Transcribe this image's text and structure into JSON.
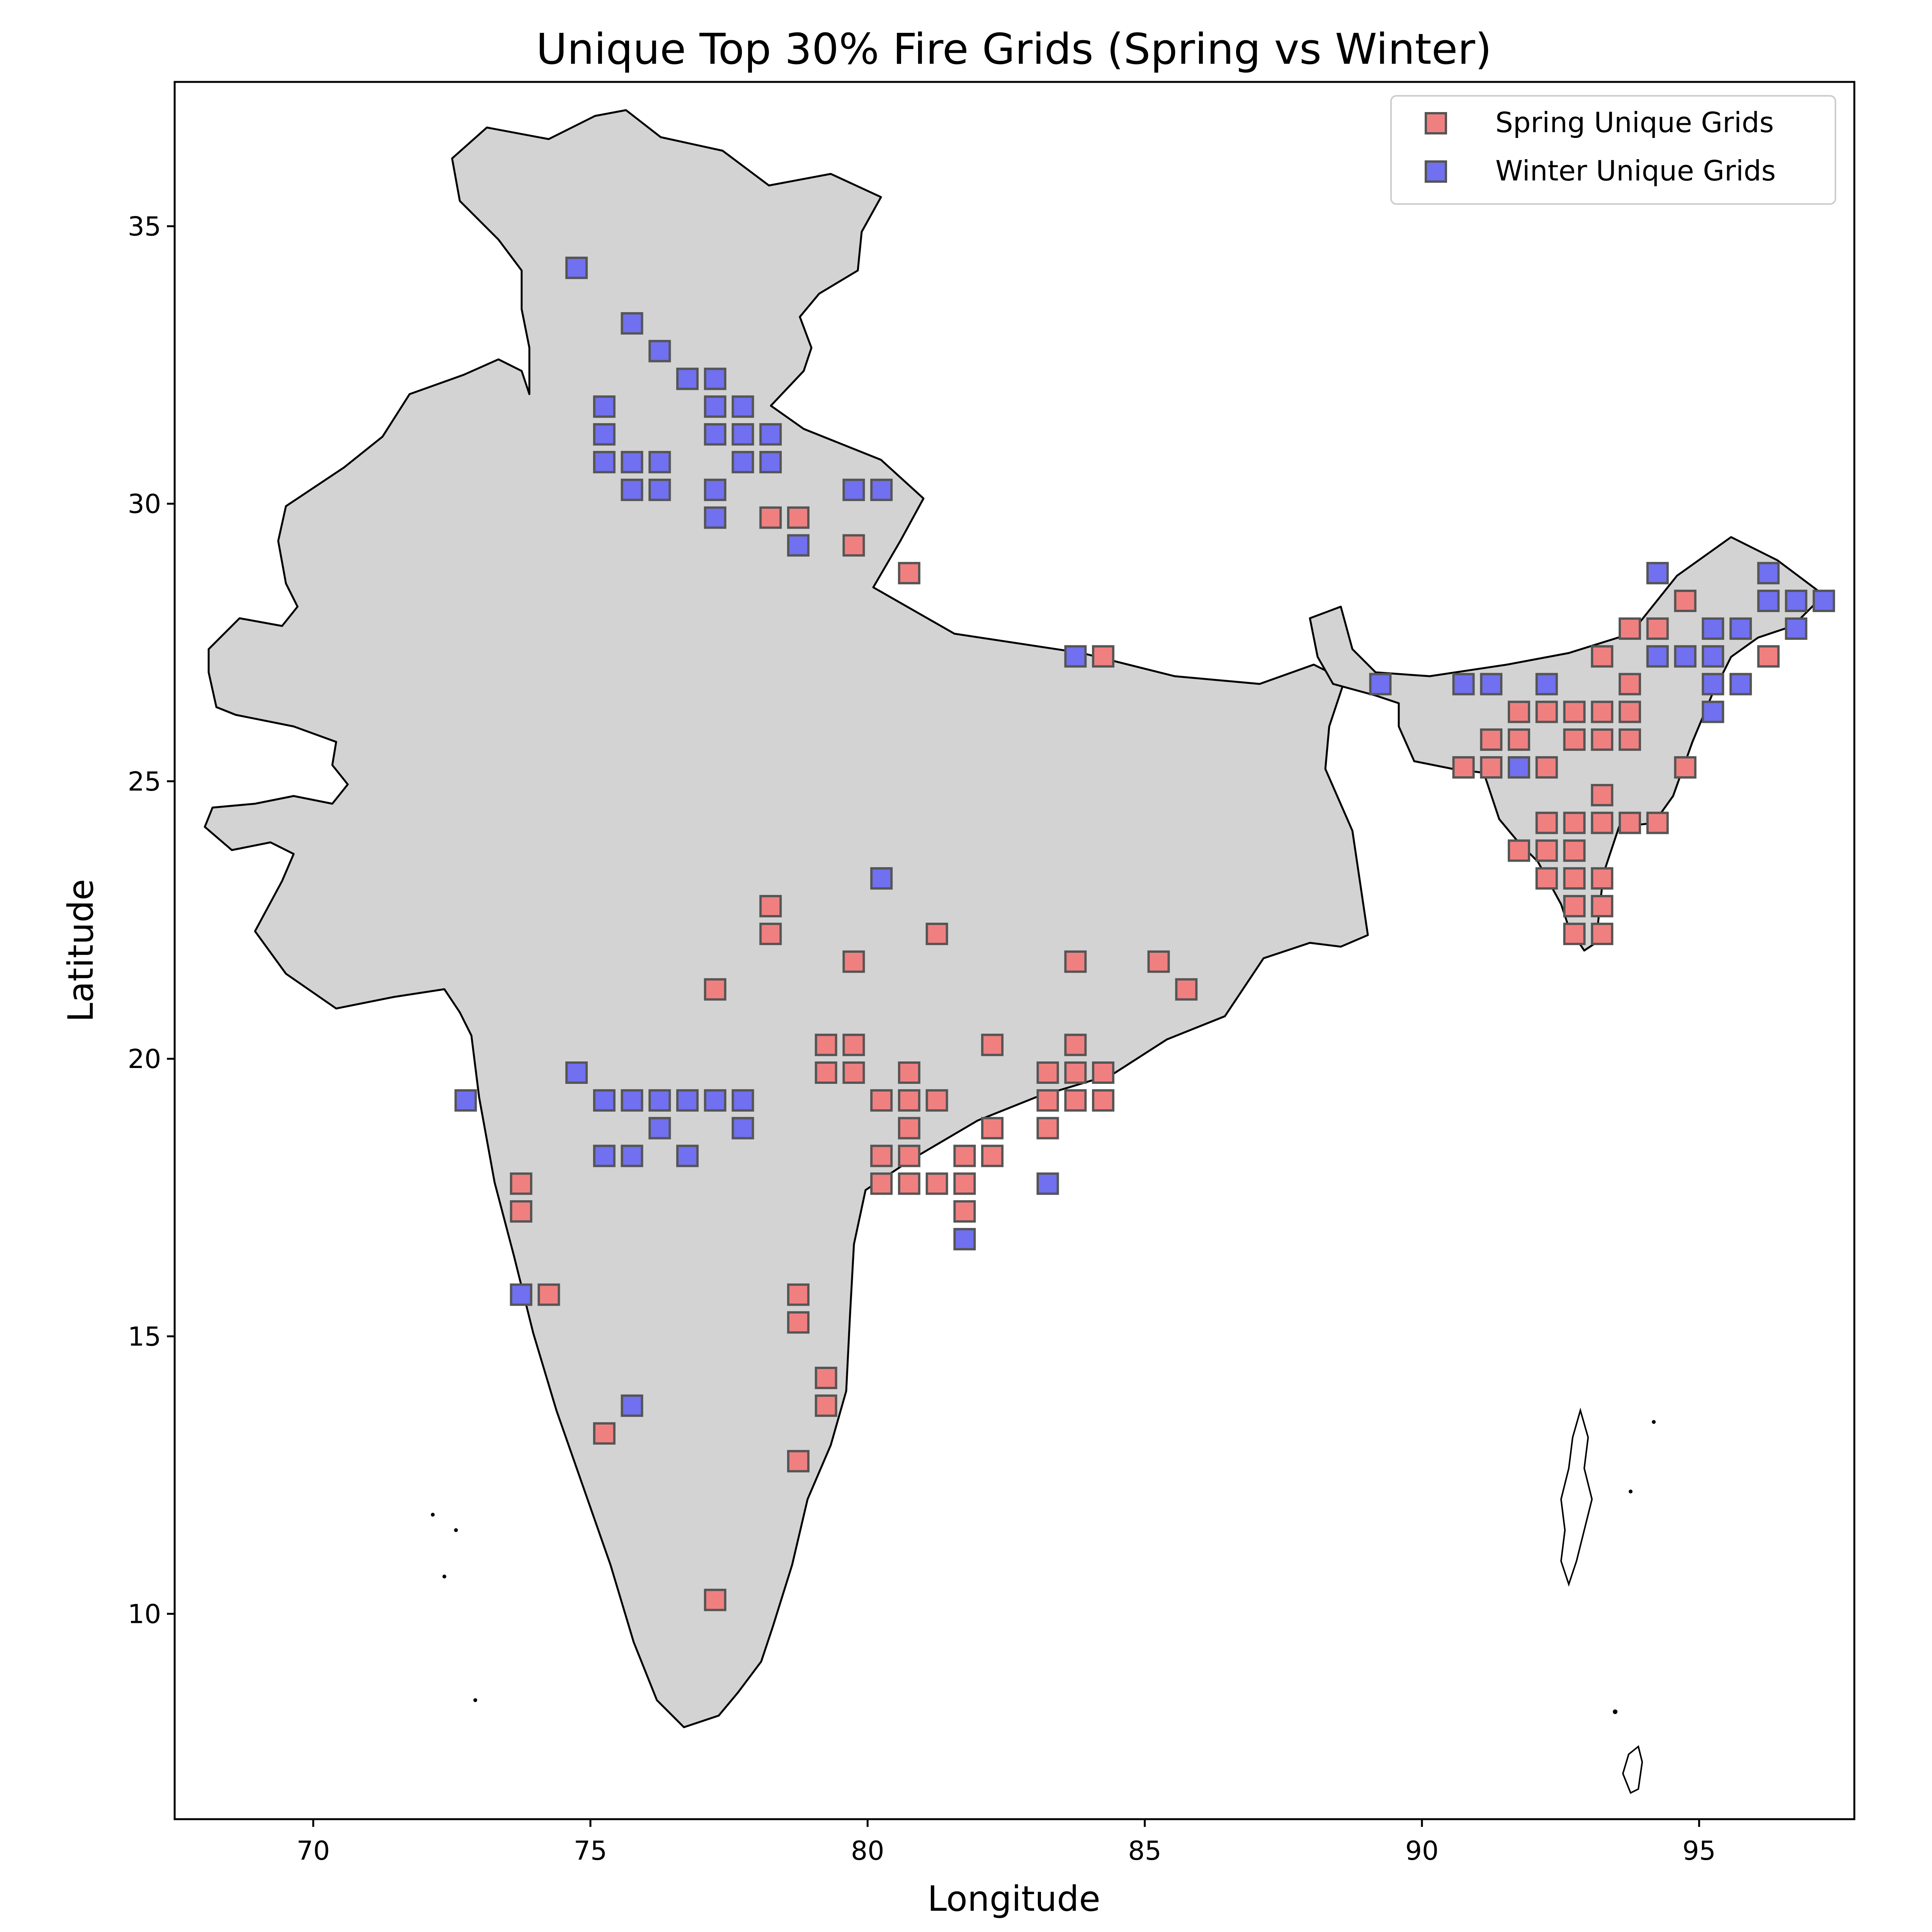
{
  "chart_data": {
    "type": "scatter",
    "title": "Unique Top 30% Fire Grids (Spring vs Winter)",
    "xlabel": "Longitude",
    "ylabel": "Latitude",
    "xlim": [
      67.5,
      97.8
    ],
    "ylim": [
      6.3,
      37.6
    ],
    "xticks": [
      70,
      75,
      80,
      85,
      90,
      95
    ],
    "yticks": [
      10,
      15,
      20,
      25,
      30,
      35
    ],
    "grid": false,
    "legend_position": "top-right",
    "marker": "square",
    "series": [
      {
        "name": "Spring Unique Grids",
        "color": "#f08080",
        "points": [
          [
            78.25,
            29.75
          ],
          [
            78.75,
            29.75
          ],
          [
            79.75,
            29.25
          ],
          [
            80.75,
            28.75
          ],
          [
            84.25,
            27.25
          ],
          [
            78.25,
            22.75
          ],
          [
            78.25,
            22.25
          ],
          [
            79.75,
            21.75
          ],
          [
            81.25,
            22.25
          ],
          [
            77.25,
            21.25
          ],
          [
            83.75,
            21.75
          ],
          [
            85.25,
            21.75
          ],
          [
            85.75,
            21.25
          ],
          [
            79.25,
            20.25
          ],
          [
            79.75,
            20.25
          ],
          [
            79.25,
            19.75
          ],
          [
            79.75,
            19.75
          ],
          [
            80.25,
            19.25
          ],
          [
            80.75,
            19.25
          ],
          [
            80.75,
            19.75
          ],
          [
            81.25,
            19.25
          ],
          [
            80.25,
            18.25
          ],
          [
            80.75,
            18.75
          ],
          [
            80.75,
            18.25
          ],
          [
            80.25,
            17.75
          ],
          [
            80.75,
            17.75
          ],
          [
            81.25,
            17.75
          ],
          [
            81.75,
            18.25
          ],
          [
            81.75,
            17.75
          ],
          [
            81.75,
            17.25
          ],
          [
            82.25,
            20.25
          ],
          [
            82.25,
            18.75
          ],
          [
            82.25,
            18.25
          ],
          [
            83.25,
            19.75
          ],
          [
            83.25,
            19.25
          ],
          [
            83.25,
            18.75
          ],
          [
            83.75,
            19.75
          ],
          [
            83.75,
            19.25
          ],
          [
            83.75,
            20.25
          ],
          [
            84.25,
            19.75
          ],
          [
            84.25,
            19.25
          ],
          [
            73.75,
            17.75
          ],
          [
            73.75,
            17.25
          ],
          [
            74.25,
            15.75
          ],
          [
            78.75,
            15.75
          ],
          [
            78.75,
            15.25
          ],
          [
            79.25,
            14.25
          ],
          [
            79.25,
            13.75
          ],
          [
            78.75,
            12.75
          ],
          [
            75.25,
            13.25
          ],
          [
            77.25,
            10.25
          ],
          [
            94.75,
            28.25
          ],
          [
            93.75,
            27.75
          ],
          [
            94.25,
            27.75
          ],
          [
            93.25,
            27.25
          ],
          [
            96.25,
            27.25
          ],
          [
            93.75,
            26.75
          ],
          [
            91.75,
            26.25
          ],
          [
            92.25,
            26.25
          ],
          [
            92.75,
            26.25
          ],
          [
            93.25,
            26.25
          ],
          [
            93.75,
            26.25
          ],
          [
            91.25,
            25.75
          ],
          [
            91.75,
            25.75
          ],
          [
            92.75,
            25.75
          ],
          [
            93.25,
            25.75
          ],
          [
            93.75,
            25.75
          ],
          [
            90.75,
            25.25
          ],
          [
            91.25,
            25.25
          ],
          [
            92.25,
            25.25
          ],
          [
            94.75,
            25.25
          ],
          [
            93.25,
            24.75
          ],
          [
            92.25,
            24.25
          ],
          [
            92.75,
            24.25
          ],
          [
            93.25,
            24.25
          ],
          [
            93.75,
            24.25
          ],
          [
            94.25,
            24.25
          ],
          [
            91.75,
            23.75
          ],
          [
            92.25,
            23.75
          ],
          [
            92.75,
            23.75
          ],
          [
            92.25,
            23.25
          ],
          [
            92.75,
            23.25
          ],
          [
            93.25,
            23.25
          ],
          [
            92.75,
            22.75
          ],
          [
            93.25,
            22.75
          ],
          [
            92.75,
            22.25
          ],
          [
            93.25,
            22.25
          ]
        ]
      },
      {
        "name": "Winter Unique Grids",
        "color": "#7070f0",
        "points": [
          [
            74.75,
            34.25
          ],
          [
            75.75,
            33.25
          ],
          [
            76.25,
            32.75
          ],
          [
            76.75,
            32.25
          ],
          [
            77.25,
            32.25
          ],
          [
            75.25,
            31.75
          ],
          [
            77.25,
            31.75
          ],
          [
            77.75,
            31.75
          ],
          [
            75.25,
            31.25
          ],
          [
            77.25,
            31.25
          ],
          [
            77.75,
            31.25
          ],
          [
            78.25,
            31.25
          ],
          [
            75.25,
            30.75
          ],
          [
            75.75,
            30.75
          ],
          [
            76.25,
            30.75
          ],
          [
            77.75,
            30.75
          ],
          [
            78.25,
            30.75
          ],
          [
            75.75,
            30.25
          ],
          [
            76.25,
            30.25
          ],
          [
            77.25,
            30.25
          ],
          [
            79.75,
            30.25
          ],
          [
            80.25,
            30.25
          ],
          [
            77.25,
            29.75
          ],
          [
            78.75,
            29.25
          ],
          [
            83.75,
            27.25
          ],
          [
            80.25,
            23.25
          ],
          [
            74.75,
            19.75
          ],
          [
            72.75,
            19.25
          ],
          [
            75.25,
            19.25
          ],
          [
            75.75,
            19.25
          ],
          [
            76.25,
            19.25
          ],
          [
            76.75,
            19.25
          ],
          [
            77.25,
            19.25
          ],
          [
            77.75,
            19.25
          ],
          [
            76.25,
            18.75
          ],
          [
            77.75,
            18.75
          ],
          [
            75.25,
            18.25
          ],
          [
            75.75,
            18.25
          ],
          [
            76.75,
            18.25
          ],
          [
            83.25,
            17.75
          ],
          [
            81.75,
            16.75
          ],
          [
            73.75,
            15.75
          ],
          [
            75.75,
            13.75
          ],
          [
            94.25,
            28.75
          ],
          [
            96.25,
            28.75
          ],
          [
            96.25,
            28.25
          ],
          [
            96.75,
            28.25
          ],
          [
            97.25,
            28.25
          ],
          [
            95.25,
            27.75
          ],
          [
            95.75,
            27.75
          ],
          [
            96.75,
            27.75
          ],
          [
            94.25,
            27.25
          ],
          [
            94.75,
            27.25
          ],
          [
            95.25,
            27.25
          ],
          [
            95.25,
            26.75
          ],
          [
            95.75,
            26.75
          ],
          [
            89.25,
            26.75
          ],
          [
            90.75,
            26.75
          ],
          [
            91.25,
            26.75
          ],
          [
            92.25,
            26.75
          ],
          [
            95.25,
            26.25
          ],
          [
            91.75,
            25.25
          ]
        ]
      }
    ]
  }
}
